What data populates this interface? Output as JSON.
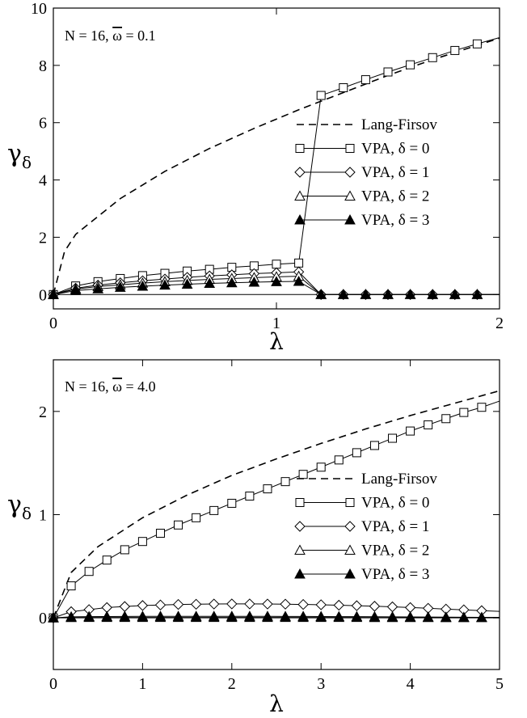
{
  "chart_data": [
    {
      "type": "line",
      "annotation": "N = 16, ω = 0.1",
      "annotation_text": {
        "prefix": "N = 16, ",
        "symbol": "ω",
        "suffix": " = 0.1"
      },
      "xlabel": "λ",
      "ylabel": "γ",
      "ylabel_sub": "δ",
      "xlim": [
        0,
        2
      ],
      "ylim": [
        -0.5,
        10
      ],
      "xticks": [
        0,
        1,
        2
      ],
      "yticks": [
        0,
        2,
        4,
        6,
        8,
        10
      ],
      "xtick_labels": [
        "0",
        "1",
        "2"
      ],
      "ytick_labels": [
        "0",
        "2",
        "4",
        "6",
        "8",
        "10"
      ],
      "legend_position": "right",
      "series": [
        {
          "name": "Lang-Firsov",
          "style": "dashed",
          "marker": "none",
          "x": [
            0,
            0.05,
            0.1,
            0.3,
            0.5,
            0.7,
            0.9,
            1.1,
            1.3,
            1.5,
            1.7,
            1.9,
            2.0
          ],
          "y": [
            0,
            1.5,
            2.1,
            3.35,
            4.3,
            5.1,
            5.8,
            6.45,
            7.05,
            7.65,
            8.2,
            8.7,
            8.95
          ]
        },
        {
          "name": "VPA, δ = 0",
          "label_symbol": "δ",
          "label_value": "0",
          "style": "solid",
          "marker": "square-open",
          "x": [
            0,
            0.1,
            0.2,
            0.3,
            0.4,
            0.5,
            0.6,
            0.7,
            0.8,
            0.9,
            1.0,
            1.1,
            1.2,
            1.3,
            1.4,
            1.5,
            1.6,
            1.7,
            1.8,
            1.9,
            2.0
          ],
          "y": [
            0,
            0.3,
            0.45,
            0.56,
            0.66,
            0.74,
            0.82,
            0.88,
            0.95,
            1.0,
            1.06,
            1.1,
            6.95,
            7.22,
            7.5,
            7.77,
            8.02,
            8.27,
            8.52,
            8.75,
            8.97
          ]
        },
        {
          "name": "VPA, δ = 1",
          "label_symbol": "δ",
          "label_value": "1",
          "style": "solid",
          "marker": "diamond-open",
          "x": [
            0,
            0.1,
            0.2,
            0.3,
            0.4,
            0.5,
            0.6,
            0.7,
            0.8,
            0.9,
            1.0,
            1.1,
            1.2,
            1.3,
            1.4,
            1.5,
            1.6,
            1.7,
            1.8,
            1.9,
            2.0
          ],
          "y": [
            0,
            0.22,
            0.33,
            0.41,
            0.48,
            0.54,
            0.6,
            0.65,
            0.69,
            0.73,
            0.76,
            0.79,
            0,
            0,
            0,
            0,
            0,
            0,
            0,
            0,
            0
          ]
        },
        {
          "name": "VPA, δ = 2",
          "label_symbol": "δ",
          "label_value": "2",
          "style": "solid",
          "marker": "triangle-open",
          "x": [
            0,
            0.1,
            0.2,
            0.3,
            0.4,
            0.5,
            0.6,
            0.7,
            0.8,
            0.9,
            1.0,
            1.1,
            1.2,
            1.3,
            1.4,
            1.5,
            1.6,
            1.7,
            1.8,
            1.9,
            2.0
          ],
          "y": [
            0,
            0.19,
            0.28,
            0.34,
            0.4,
            0.45,
            0.49,
            0.53,
            0.56,
            0.59,
            0.62,
            0.64,
            0,
            0,
            0,
            0,
            0,
            0,
            0,
            0,
            0
          ]
        },
        {
          "name": "VPA, δ = 3",
          "label_symbol": "δ",
          "label_value": "3",
          "style": "solid",
          "marker": "triangle-filled",
          "x": [
            0,
            0.1,
            0.2,
            0.3,
            0.4,
            0.5,
            0.6,
            0.7,
            0.8,
            0.9,
            1.0,
            1.1,
            1.2,
            1.3,
            1.4,
            1.5,
            1.6,
            1.7,
            1.8,
            1.9,
            2.0
          ],
          "y": [
            0,
            0.14,
            0.2,
            0.25,
            0.29,
            0.33,
            0.36,
            0.39,
            0.41,
            0.43,
            0.45,
            0.46,
            0,
            0,
            0,
            0,
            0,
            0,
            0,
            0,
            0
          ]
        }
      ]
    },
    {
      "type": "line",
      "annotation": "N = 16, ω = 4.0",
      "annotation_text": {
        "prefix": "N = 16, ",
        "symbol": "ω",
        "suffix": " = 4.0"
      },
      "xlabel": "λ",
      "ylabel": "γ",
      "ylabel_sub": "δ",
      "xlim": [
        0,
        5
      ],
      "ylim": [
        -0.5,
        2.5
      ],
      "xticks": [
        0,
        1,
        2,
        3,
        4,
        5
      ],
      "yticks": [
        0,
        1,
        2
      ],
      "xtick_labels": [
        "0",
        "1",
        "2",
        "3",
        "4",
        "5"
      ],
      "ytick_labels": [
        "0",
        "1",
        "2"
      ],
      "legend_position": "right",
      "series": [
        {
          "name": "Lang-Firsov",
          "style": "dashed",
          "marker": "none",
          "x": [
            0,
            0.2,
            0.5,
            1.0,
            1.5,
            2.0,
            2.5,
            3.0,
            3.5,
            4.0,
            4.5,
            5.0
          ],
          "y": [
            0,
            0.44,
            0.69,
            0.97,
            1.19,
            1.38,
            1.54,
            1.69,
            1.83,
            1.96,
            2.08,
            2.2
          ]
        },
        {
          "name": "VPA, δ = 0",
          "label_symbol": "δ",
          "label_value": "0",
          "style": "solid",
          "marker": "square-open",
          "x": [
            0,
            0.2,
            0.4,
            0.6,
            0.8,
            1.0,
            1.2,
            1.4,
            1.6,
            1.8,
            2.0,
            2.2,
            2.4,
            2.6,
            2.8,
            3.0,
            3.2,
            3.4,
            3.6,
            3.8,
            4.0,
            4.2,
            4.4,
            4.6,
            4.8,
            5.0
          ],
          "y": [
            0,
            0.31,
            0.45,
            0.56,
            0.66,
            0.74,
            0.82,
            0.9,
            0.97,
            1.04,
            1.11,
            1.18,
            1.25,
            1.32,
            1.39,
            1.46,
            1.53,
            1.6,
            1.67,
            1.74,
            1.81,
            1.87,
            1.93,
            1.99,
            2.04,
            2.1
          ]
        },
        {
          "name": "VPA, δ = 1",
          "label_symbol": "δ",
          "label_value": "1",
          "style": "solid",
          "marker": "diamond-open",
          "x": [
            0,
            0.2,
            0.4,
            0.6,
            0.8,
            1.0,
            1.2,
            1.4,
            1.6,
            1.8,
            2.0,
            2.2,
            2.4,
            2.6,
            2.8,
            3.0,
            3.2,
            3.4,
            3.6,
            3.8,
            4.0,
            4.2,
            4.4,
            4.6,
            4.8,
            5.0
          ],
          "y": [
            0,
            0.06,
            0.08,
            0.1,
            0.11,
            0.12,
            0.125,
            0.13,
            0.132,
            0.134,
            0.135,
            0.135,
            0.134,
            0.133,
            0.13,
            0.127,
            0.123,
            0.118,
            0.113,
            0.107,
            0.1,
            0.093,
            0.085,
            0.078,
            0.07,
            0.063
          ]
        },
        {
          "name": "VPA, δ = 2",
          "label_symbol": "δ",
          "label_value": "2",
          "style": "solid",
          "marker": "triangle-open",
          "x": [
            0,
            0.2,
            0.4,
            0.6,
            0.8,
            1.0,
            1.2,
            1.4,
            1.6,
            1.8,
            2.0,
            2.2,
            2.4,
            2.6,
            2.8,
            3.0,
            3.2,
            3.4,
            3.6,
            3.8,
            4.0,
            4.2,
            4.4,
            4.6,
            4.8,
            5.0
          ],
          "y": [
            0,
            0.01,
            0.012,
            0.013,
            0.014,
            0.015,
            0.015,
            0.015,
            0.015,
            0.015,
            0.015,
            0.015,
            0.015,
            0.014,
            0.014,
            0.013,
            0.012,
            0.012,
            0.011,
            0.01,
            0.009,
            0.008,
            0.007,
            0.006,
            0.005,
            0.005
          ]
        },
        {
          "name": "VPA, δ = 3",
          "label_symbol": "δ",
          "label_value": "3",
          "style": "solid",
          "marker": "triangle-filled",
          "x": [
            0,
            0.2,
            0.4,
            0.6,
            0.8,
            1.0,
            1.2,
            1.4,
            1.6,
            1.8,
            2.0,
            2.2,
            2.4,
            2.6,
            2.8,
            3.0,
            3.2,
            3.4,
            3.6,
            3.8,
            4.0,
            4.2,
            4.4,
            4.6,
            4.8,
            5.0
          ],
          "y": [
            0,
            0.003,
            0.004,
            0.004,
            0.004,
            0.004,
            0.004,
            0.004,
            0.004,
            0.004,
            0.004,
            0.004,
            0.004,
            0.004,
            0.004,
            0.004,
            0.004,
            0.004,
            0.003,
            0.003,
            0.003,
            0.003,
            0.002,
            0.002,
            0.002,
            0.002
          ]
        }
      ]
    }
  ]
}
